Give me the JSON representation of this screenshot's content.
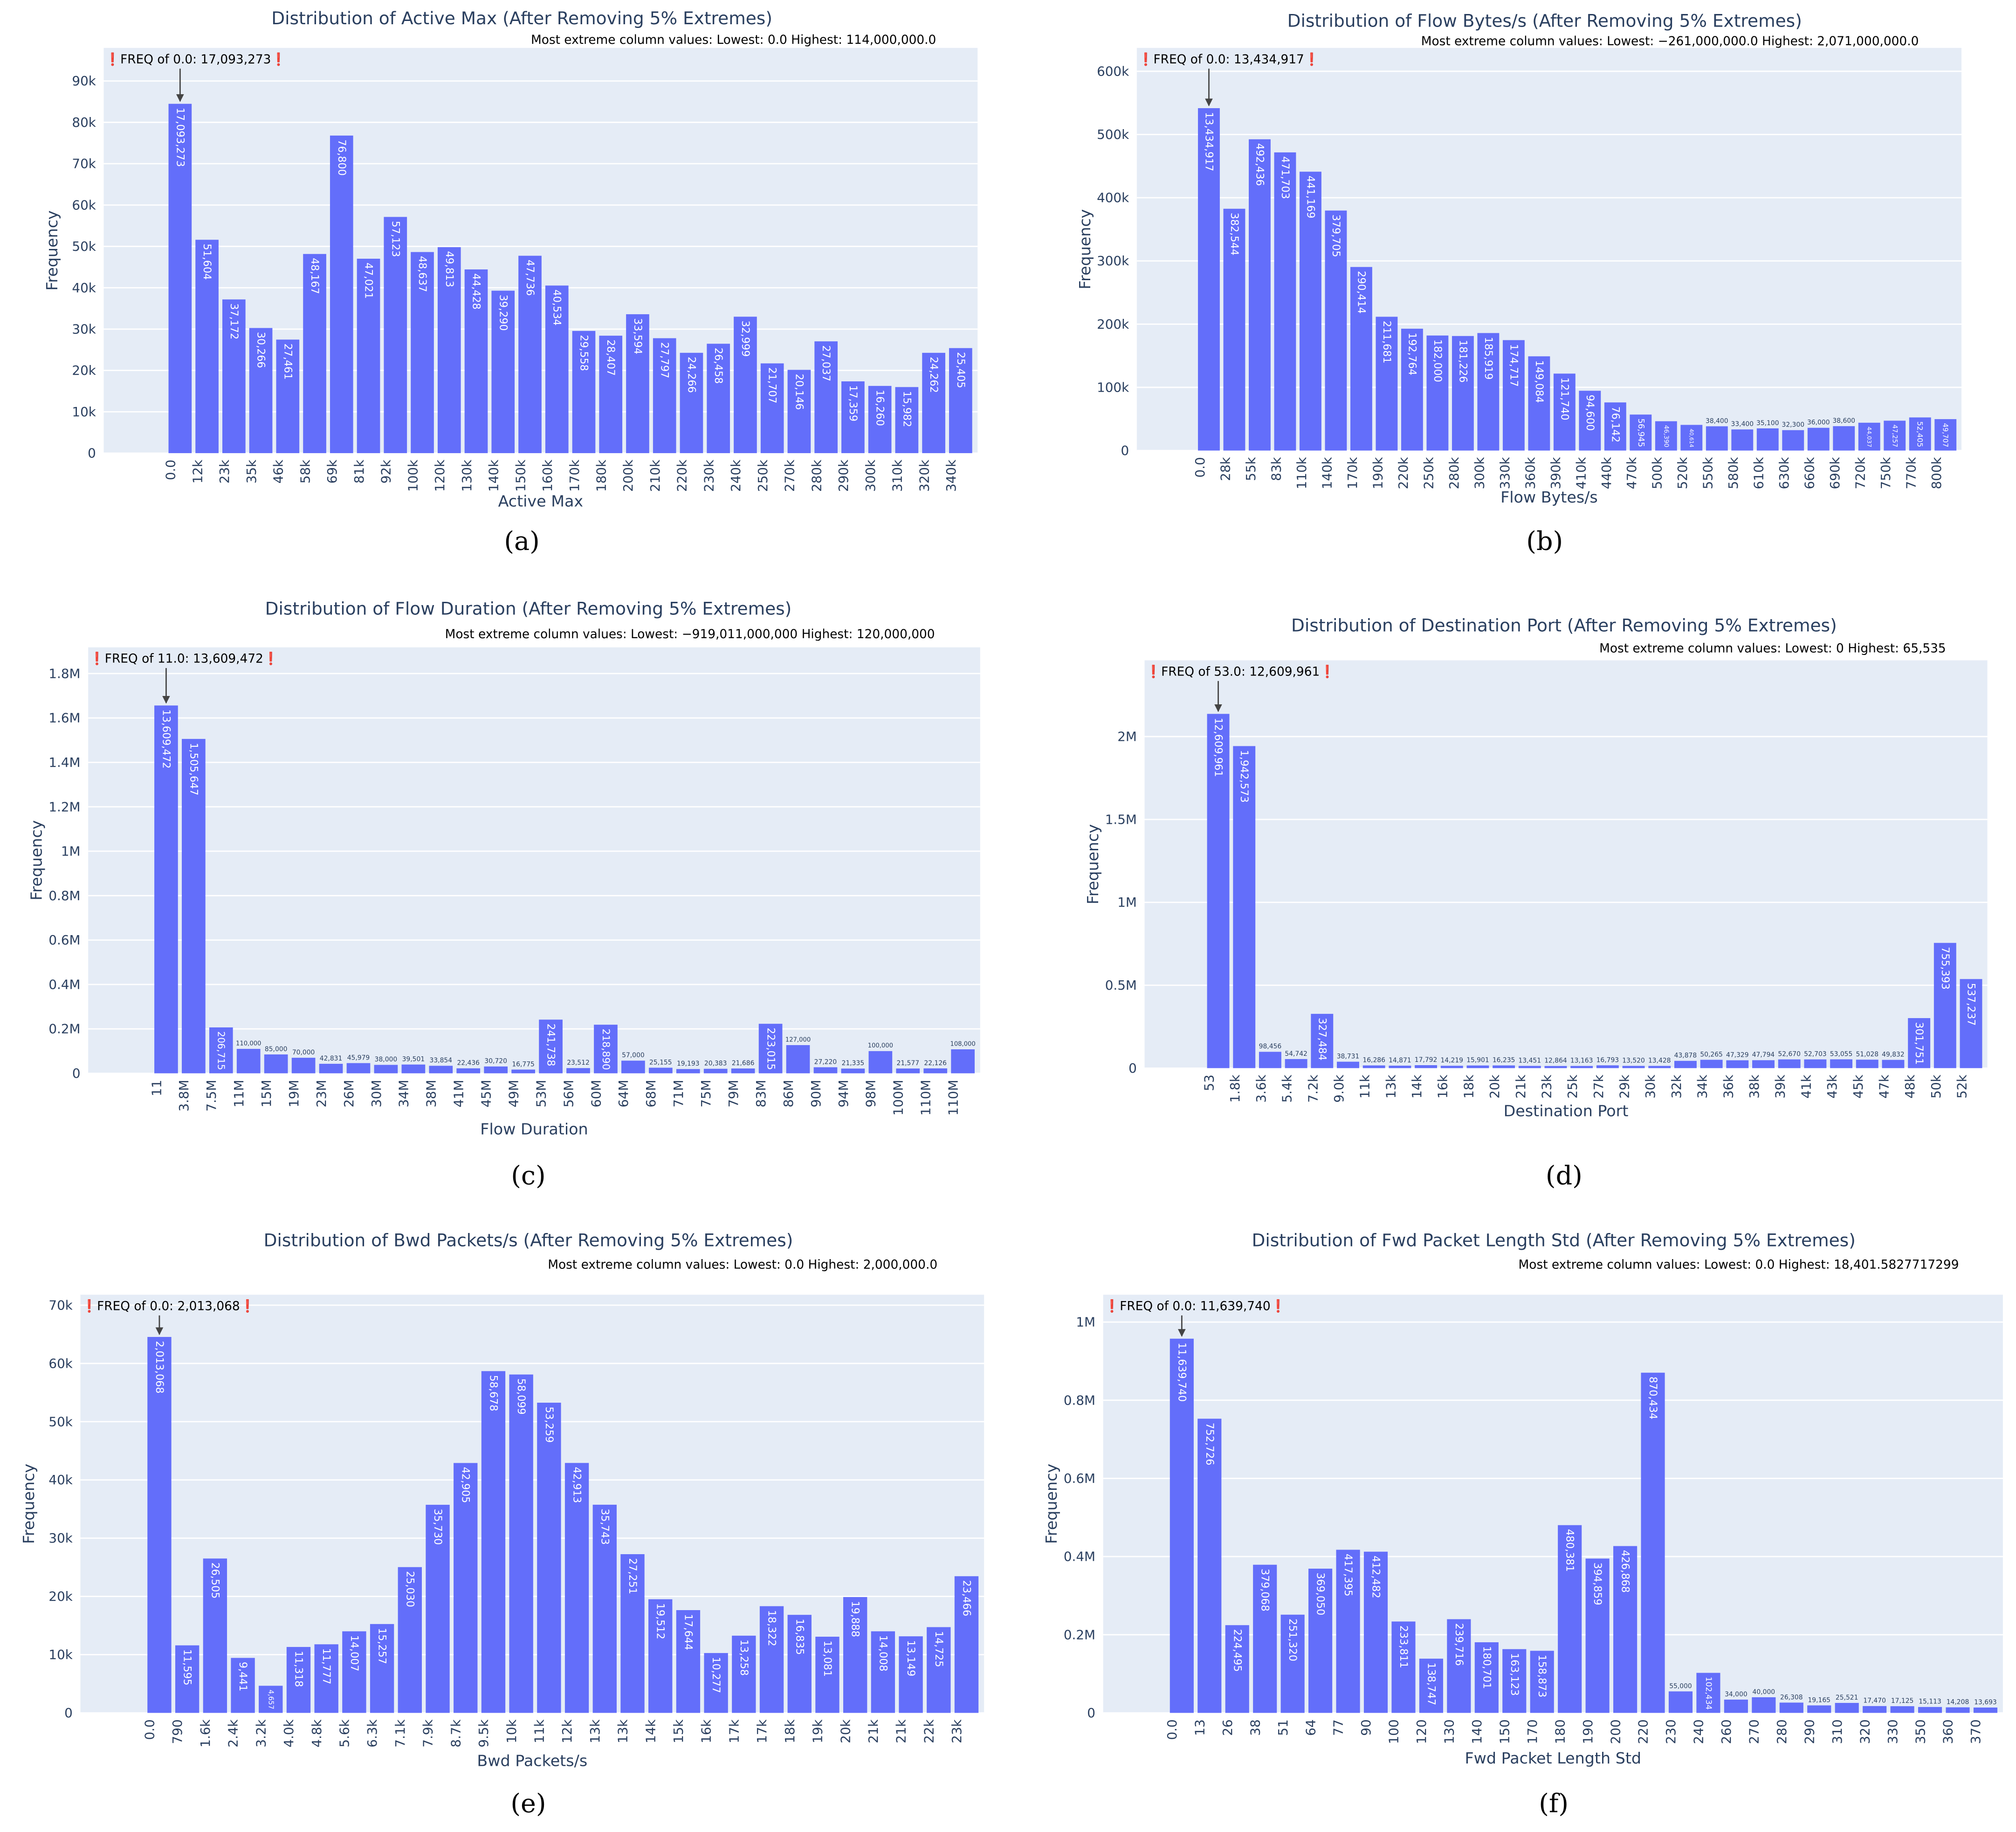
{
  "chart_data": [
    {
      "type": "bar",
      "title": "Distribution of Active Max (After Removing 5% Extremes)",
      "subtitle": "Most extreme column values: Lowest: 0.0 Highest: 114,000,000.0",
      "annotation": "❗FREQ of 0.0: 17,093,273❗",
      "panel_label": "(a)",
      "x_label": "Active Max",
      "y_label": "Frequency",
      "color": "#636efa",
      "grid": true,
      "categories": [
        "0.0",
        "12k",
        "23k",
        "35k",
        "46k",
        "58k",
        "69k",
        "81k",
        "92k",
        "100k",
        "120k",
        "130k",
        "140k",
        "150k",
        "160k",
        "170k",
        "180k",
        "200k",
        "210k",
        "220k",
        "230k",
        "240k",
        "250k",
        "270k",
        "280k",
        "290k",
        "300k",
        "310k",
        "320k",
        "340k"
      ],
      "values": [
        17093273,
        51604,
        37172,
        30266,
        27461,
        48167,
        76800,
        47021,
        57123,
        48637,
        49813,
        44428,
        39290,
        47736,
        40534,
        29558,
        28407,
        33594,
        27797,
        24266,
        26458,
        32999,
        21707,
        20146,
        27037,
        17359,
        16260,
        15982,
        24262,
        25405
      ],
      "value_labels": [
        "17,093,273",
        "51,604",
        "37,172",
        "30,266",
        "27,461",
        "48,167",
        "76,800",
        "47,021",
        "57,123",
        "48,637",
        "49,813",
        "44,428",
        "39,290",
        "47,736",
        "40,534",
        "29,558",
        "28,407",
        "33,594",
        "27,797",
        "24,266",
        "26,458",
        "32,999",
        "21,707",
        "20,146",
        "27,037",
        "17,359",
        "16,260",
        "15,982",
        "24,262",
        "25,405"
      ],
      "ylim": [
        0,
        98000
      ],
      "yticks": [
        0,
        {
          "value": 10000,
          "label": "10k"
        },
        {
          "value": 20000,
          "label": "20k"
        },
        {
          "value": 30000,
          "label": "30k"
        },
        {
          "value": 40000,
          "label": "40k"
        },
        {
          "value": 50000,
          "label": "50k"
        },
        {
          "value": 60000,
          "label": "60k"
        },
        {
          "value": 70000,
          "label": "70k"
        },
        {
          "value": 80000,
          "label": "80k"
        },
        {
          "value": 90000,
          "label": "90k"
        }
      ]
    },
    {
      "type": "bar",
      "title": "Distribution of Flow Bytes/s (After Removing 5% Extremes)",
      "subtitle": "Most extreme column values: Lowest: −261,000,000.0 Highest: 2,071,000,000.0",
      "annotation": "❗FREQ of 0.0: 13,434,917❗",
      "panel_label": "(b)",
      "x_label": "Flow Bytes/s",
      "y_label": "Frequency",
      "color": "#636efa",
      "grid": true,
      "categories": [
        "0.0",
        "28k",
        "55k",
        "83k",
        "110k",
        "140k",
        "170k",
        "190k",
        "220k",
        "250k",
        "280k",
        "300k",
        "330k",
        "360k",
        "390k",
        "410k",
        "440k",
        "470k",
        "500k",
        "520k",
        "550k",
        "580k",
        "610k",
        "630k",
        "660k",
        "690k",
        "720k",
        "750k",
        "770k",
        "800k"
      ],
      "values": [
        13434917,
        382544,
        492436,
        471703,
        441169,
        379705,
        290414,
        211681,
        192764,
        182000,
        181226,
        185919,
        174717,
        149084,
        121740,
        94600,
        76142,
        56945,
        46390,
        40614,
        38400,
        33400,
        35100,
        32300,
        36000,
        38600,
        44037,
        47257,
        52405,
        49707
      ],
      "value_labels": [
        "13,434,917",
        "382,544",
        "492,436",
        "471,703",
        "441,169",
        "379,705",
        "290,414",
        "211,681",
        "192,764",
        "182,000",
        "181,226",
        "185,919",
        "174,717",
        "149,084",
        "121,740",
        "94,600",
        "76,142",
        "56,945",
        "46,390",
        "40,614",
        "38,400",
        "33,400",
        "35,100",
        "32,300",
        "36,000",
        "38,600",
        "44,037",
        "47,257",
        "52,405",
        "49,707"
      ],
      "ylim": [
        0,
        637000
      ],
      "yticks": [
        0,
        {
          "value": 100000,
          "label": "100k"
        },
        {
          "value": 200000,
          "label": "200k"
        },
        {
          "value": 300000,
          "label": "300k"
        },
        {
          "value": 400000,
          "label": "400k"
        },
        {
          "value": 500000,
          "label": "500k"
        },
        {
          "value": 600000,
          "label": "600k"
        }
      ]
    },
    {
      "type": "bar",
      "title": "Distribution of Flow Duration (After Removing 5% Extremes)",
      "subtitle": "Most extreme column values: Lowest: −919,011,000,000 Highest: 120,000,000",
      "annotation": "❗FREQ of 11.0: 13,609,472❗",
      "panel_label": "(c)",
      "x_label": "Flow Duration",
      "y_label": "Frequency",
      "color": "#636efa",
      "grid": true,
      "categories": [
        "11",
        "3.8M",
        "7.5M",
        "11M",
        "15M",
        "19M",
        "23M",
        "26M",
        "30M",
        "34M",
        "38M",
        "41M",
        "45M",
        "49M",
        "53M",
        "56M",
        "60M",
        "64M",
        "68M",
        "71M",
        "75M",
        "79M",
        "83M",
        "86M",
        "90M",
        "94M",
        "98M",
        "100M",
        "110M",
        "110M"
      ],
      "values": [
        13609472,
        1505647,
        206715,
        110000,
        85000,
        70000,
        42831,
        45979,
        38000,
        39501,
        33854,
        22436,
        30720,
        16775,
        241738,
        23512,
        218890,
        57000,
        25155,
        19193,
        20383,
        21686,
        223015,
        127000,
        27220,
        21335,
        100000,
        21577,
        22126,
        108000
      ],
      "value_labels": [
        "13,609,472",
        "1,505,647",
        "206,715",
        "110,000",
        "85,000",
        "70,000",
        "42,831",
        "45,979",
        "38,000",
        "39,501",
        "33,854",
        "22,436",
        "30,720",
        "16,775",
        "241,738",
        "23,512",
        "218,890",
        "57,000",
        "25,155",
        "19,193",
        "20,383",
        "21,686",
        "223,015",
        "127,000",
        "27,220",
        "21,335",
        "100,000",
        "21,577",
        "22,126",
        "108,000"
      ],
      "ylim": [
        0,
        1918000
      ],
      "yticks": [
        0,
        {
          "value": 200000,
          "label": "0.2M"
        },
        {
          "value": 400000,
          "label": "0.4M"
        },
        {
          "value": 600000,
          "label": "0.6M"
        },
        {
          "value": 800000,
          "label": "0.8M"
        },
        {
          "value": 1000000,
          "label": "1M"
        },
        {
          "value": 1200000,
          "label": "1.2M"
        },
        {
          "value": 1400000,
          "label": "1.4M"
        },
        {
          "value": 1600000,
          "label": "1.6M"
        },
        {
          "value": 1800000,
          "label": "1.8M"
        }
      ]
    },
    {
      "type": "bar",
      "title": "Distribution of Destination Port (After Removing 5% Extremes)",
      "subtitle": "Most extreme column values: Lowest: 0 Highest: 65,535",
      "annotation": "❗FREQ of 53.0: 12,609,961❗",
      "panel_label": "(d)",
      "x_label": "Destination Port",
      "y_label": "Frequency",
      "color": "#636efa",
      "grid": true,
      "categories": [
        "53",
        "1.8k",
        "3.6k",
        "5.4k",
        "7.2k",
        "9.0k",
        "11k",
        "13k",
        "14k",
        "16k",
        "18k",
        "20k",
        "21k",
        "23k",
        "25k",
        "27k",
        "29k",
        "30k",
        "32k",
        "34k",
        "36k",
        "38k",
        "39k",
        "41k",
        "43k",
        "45k",
        "47k",
        "48k",
        "50k",
        "52k"
      ],
      "values": [
        12609961,
        1942573,
        98456,
        54742,
        327484,
        38731,
        16286,
        14871,
        17792,
        14219,
        15901,
        16235,
        13451,
        12864,
        13163,
        16793,
        13520,
        13428,
        43878,
        50265,
        47329,
        47794,
        52670,
        52703,
        53055,
        51028,
        49832,
        301751,
        755393,
        537237
      ],
      "value_labels": [
        "12,609,961",
        "1,942,573",
        "98,456",
        "54,742",
        "327,484",
        "38,731",
        "16,286",
        "14,871",
        "17,792",
        "14,219",
        "15,901",
        "16,235",
        "13,451",
        "12,864",
        "13,163",
        "16,793",
        "13,520",
        "13,428",
        "43,878",
        "50,265",
        "47,329",
        "47,794",
        "52,670",
        "52,703",
        "53,055",
        "51,028",
        "49,832",
        "301,751",
        "755,393",
        "537,237"
      ],
      "ylim": [
        0,
        2460000
      ],
      "yticks": [
        0,
        {
          "value": 500000,
          "label": "0.5M"
        },
        {
          "value": 1000000,
          "label": "1M"
        },
        {
          "value": 1500000,
          "label": "1.5M"
        },
        {
          "value": 2000000,
          "label": "2M"
        }
      ]
    },
    {
      "type": "bar",
      "title": "Distribution of Bwd Packets/s (After Removing 5% Extremes)",
      "subtitle": "Most extreme column values: Lowest: 0.0 Highest: 2,000,000.0",
      "annotation": "❗FREQ of 0.0: 2,013,068❗",
      "panel_label": "(e)",
      "x_label": "Bwd Packets/s",
      "y_label": "Frequency",
      "color": "#636efa",
      "grid": true,
      "categories": [
        "0.0",
        "790",
        "1.6k",
        "2.4k",
        "3.2k",
        "4.0k",
        "4.8k",
        "5.6k",
        "6.3k",
        "7.1k",
        "7.9k",
        "8.7k",
        "9.5k",
        "10k",
        "11k",
        "12k",
        "13k",
        "13k",
        "14k",
        "15k",
        "16k",
        "17k",
        "17k",
        "18k",
        "19k",
        "20k",
        "21k",
        "21k",
        "22k",
        "23k"
      ],
      "values": [
        2013068,
        11595,
        26505,
        9441,
        4657,
        11318,
        11777,
        14007,
        15257,
        25030,
        35730,
        42905,
        58678,
        58099,
        53259,
        42913,
        35743,
        27251,
        19512,
        17644,
        10277,
        13258,
        18322,
        16835,
        13081,
        19888,
        14008,
        13149,
        14725,
        23466
      ],
      "value_labels": [
        "2,013,068",
        "11,595",
        "26,505",
        "9,441",
        "4,657",
        "11,318",
        "11,777",
        "14,007",
        "15,257",
        "25,030",
        "35,730",
        "42,905",
        "58,678",
        "58,099",
        "53,259",
        "42,913",
        "35,743",
        "27,251",
        "19,512",
        "17,644",
        "10,277",
        "13,258",
        "18,322",
        "16,835",
        "13,081",
        "19,888",
        "14,008",
        "13,149",
        "14,725",
        "23,466"
      ],
      "ylim": [
        0,
        71800
      ],
      "yticks": [
        0,
        {
          "value": 10000,
          "label": "10k"
        },
        {
          "value": 20000,
          "label": "20k"
        },
        {
          "value": 30000,
          "label": "30k"
        },
        {
          "value": 40000,
          "label": "40k"
        },
        {
          "value": 50000,
          "label": "50k"
        },
        {
          "value": 60000,
          "label": "60k"
        },
        {
          "value": 70000,
          "label": "70k"
        }
      ]
    },
    {
      "type": "bar",
      "title": "Distribution of Fwd Packet Length Std (After Removing 5% Extremes)",
      "subtitle": "Most extreme column values: Lowest: 0.0 Highest: 18,401.5827717299",
      "annotation": "❗FREQ of 0.0: 11,639,740❗",
      "panel_label": "(f)",
      "x_label": "Fwd Packet Length Std",
      "y_label": "Frequency",
      "color": "#636efa",
      "grid": true,
      "categories": [
        "0.0",
        "13",
        "26",
        "38",
        "51",
        "64",
        "77",
        "90",
        "100",
        "120",
        "130",
        "140",
        "150",
        "170",
        "180",
        "190",
        "200",
        "220",
        "230",
        "240",
        "260",
        "270",
        "280",
        "290",
        "310",
        "320",
        "330",
        "350",
        "360",
        "370"
      ],
      "values": [
        11639740,
        752726,
        224495,
        379068,
        251320,
        369050,
        417395,
        412482,
        233811,
        138747,
        239716,
        180701,
        163123,
        158873,
        480381,
        394859,
        426868,
        870434,
        55000,
        102434,
        34000,
        40000,
        26308,
        19165,
        25521,
        17470,
        17125,
        15113,
        14208,
        13693
      ],
      "value_labels": [
        "11,639,740",
        "752,726",
        "224,495",
        "379,068",
        "251,320",
        "369,050",
        "417,395",
        "412,482",
        "233,811",
        "138,747",
        "239,716",
        "180,701",
        "163,123",
        "158,873",
        "480,381",
        "394,859",
        "426,868",
        "870,434",
        "55,000",
        "102,434",
        "34,000",
        "40,000",
        "26,308",
        "19,165",
        "25,521",
        "17,470",
        "17,125",
        "15,113",
        "14,208",
        "13,693"
      ],
      "ylim": [
        0,
        1070000
      ],
      "yticks": [
        0,
        {
          "value": 200000,
          "label": "0.2M"
        },
        {
          "value": 400000,
          "label": "0.4M"
        },
        {
          "value": 600000,
          "label": "0.6M"
        },
        {
          "value": 800000,
          "label": "0.8M"
        },
        {
          "value": 1000000,
          "label": "1M"
        }
      ]
    }
  ]
}
